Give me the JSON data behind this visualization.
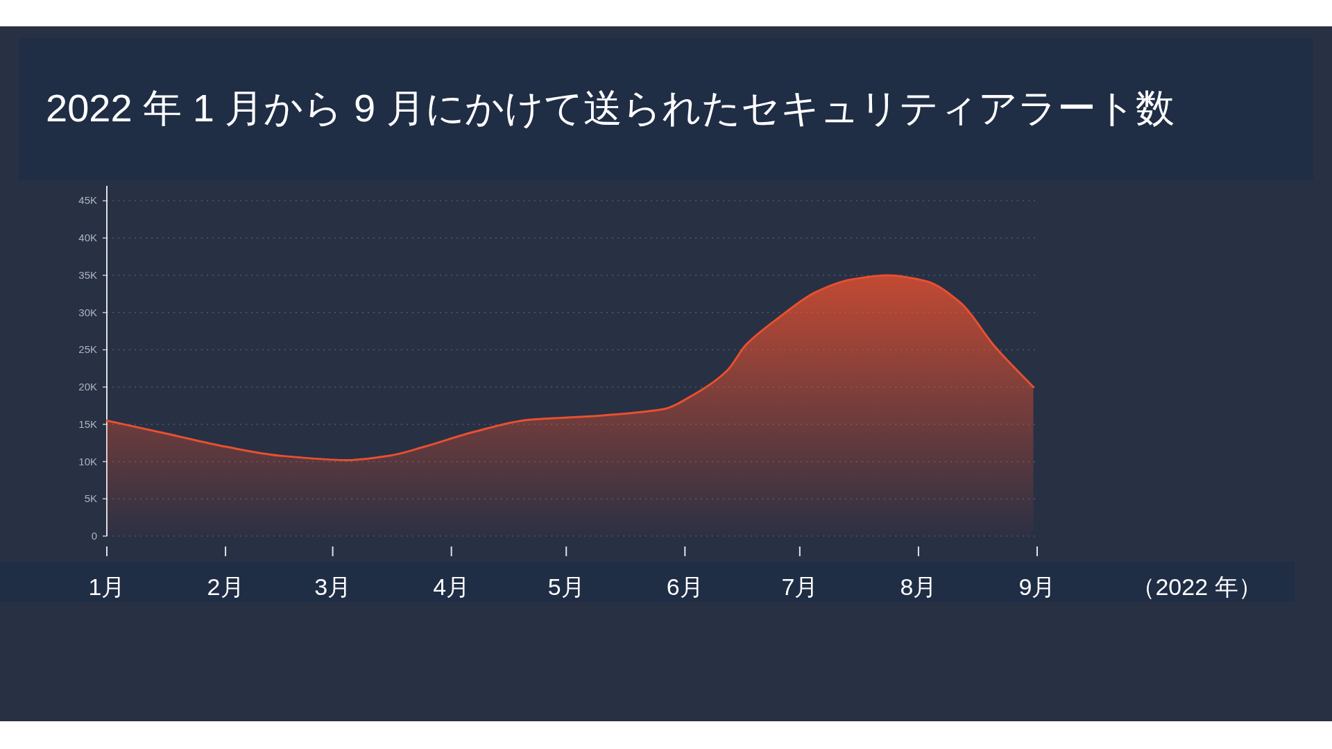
{
  "chart_data": {
    "type": "area",
    "title": "2022 年 1 月から 9 月にかけて送られたセキュリティアラート数",
    "annotations": [
      "（2022 年）"
    ],
    "x": [
      "2022-01-01",
      "2022-01-17",
      "2022-02-01",
      "2022-02-15",
      "2022-03-05",
      "2022-03-16",
      "2022-03-25",
      "2022-04-07",
      "2022-04-21",
      "2022-05-08",
      "2022-05-26",
      "2022-06-04",
      "2022-06-12",
      "2022-06-17",
      "2022-06-26",
      "2022-07-05",
      "2022-07-14",
      "2022-07-24",
      "2022-08-03",
      "2022-08-12",
      "2022-08-21",
      "2022-08-31"
    ],
    "series": [
      {
        "color": "#e8502f",
        "values": [
          15500,
          13700,
          12000,
          10800,
          10200,
          10800,
          12000,
          14000,
          15600,
          16100,
          17000,
          19200,
          22200,
          25700,
          29500,
          32700,
          34400,
          35000,
          34200,
          31300,
          25400,
          20000
        ]
      }
    ],
    "xlim": [
      "2022-01-01",
      "2022-09-01"
    ],
    "xticks": [
      {
        "value": "2022-01-01",
        "label": "1月"
      },
      {
        "value": "2022-02-01",
        "label": "2月"
      },
      {
        "value": "2022-03-01",
        "label": "3月"
      },
      {
        "value": "2022-04-01",
        "label": "4月"
      },
      {
        "value": "2022-05-01",
        "label": "5月"
      },
      {
        "value": "2022-06-01",
        "label": "6月"
      },
      {
        "value": "2022-07-01",
        "label": "7月"
      },
      {
        "value": "2022-08-01",
        "label": "8月"
      },
      {
        "value": "2022-09-01",
        "label": "9月"
      }
    ],
    "ylim": [
      0,
      47000
    ],
    "yticks": [
      0,
      {
        "value": 5000,
        "label": "5K"
      },
      {
        "value": 10000,
        "label": "10K"
      },
      {
        "value": 15000,
        "label": "15K"
      },
      {
        "value": 20000,
        "label": "20K"
      },
      {
        "value": 25000,
        "label": "25K"
      },
      {
        "value": 30000,
        "label": "30K"
      },
      {
        "value": 35000,
        "label": "35K"
      },
      {
        "value": 40000,
        "label": "40K"
      },
      {
        "value": 45000,
        "label": "45K"
      }
    ],
    "grid": "y",
    "line_style": "solid"
  }
}
